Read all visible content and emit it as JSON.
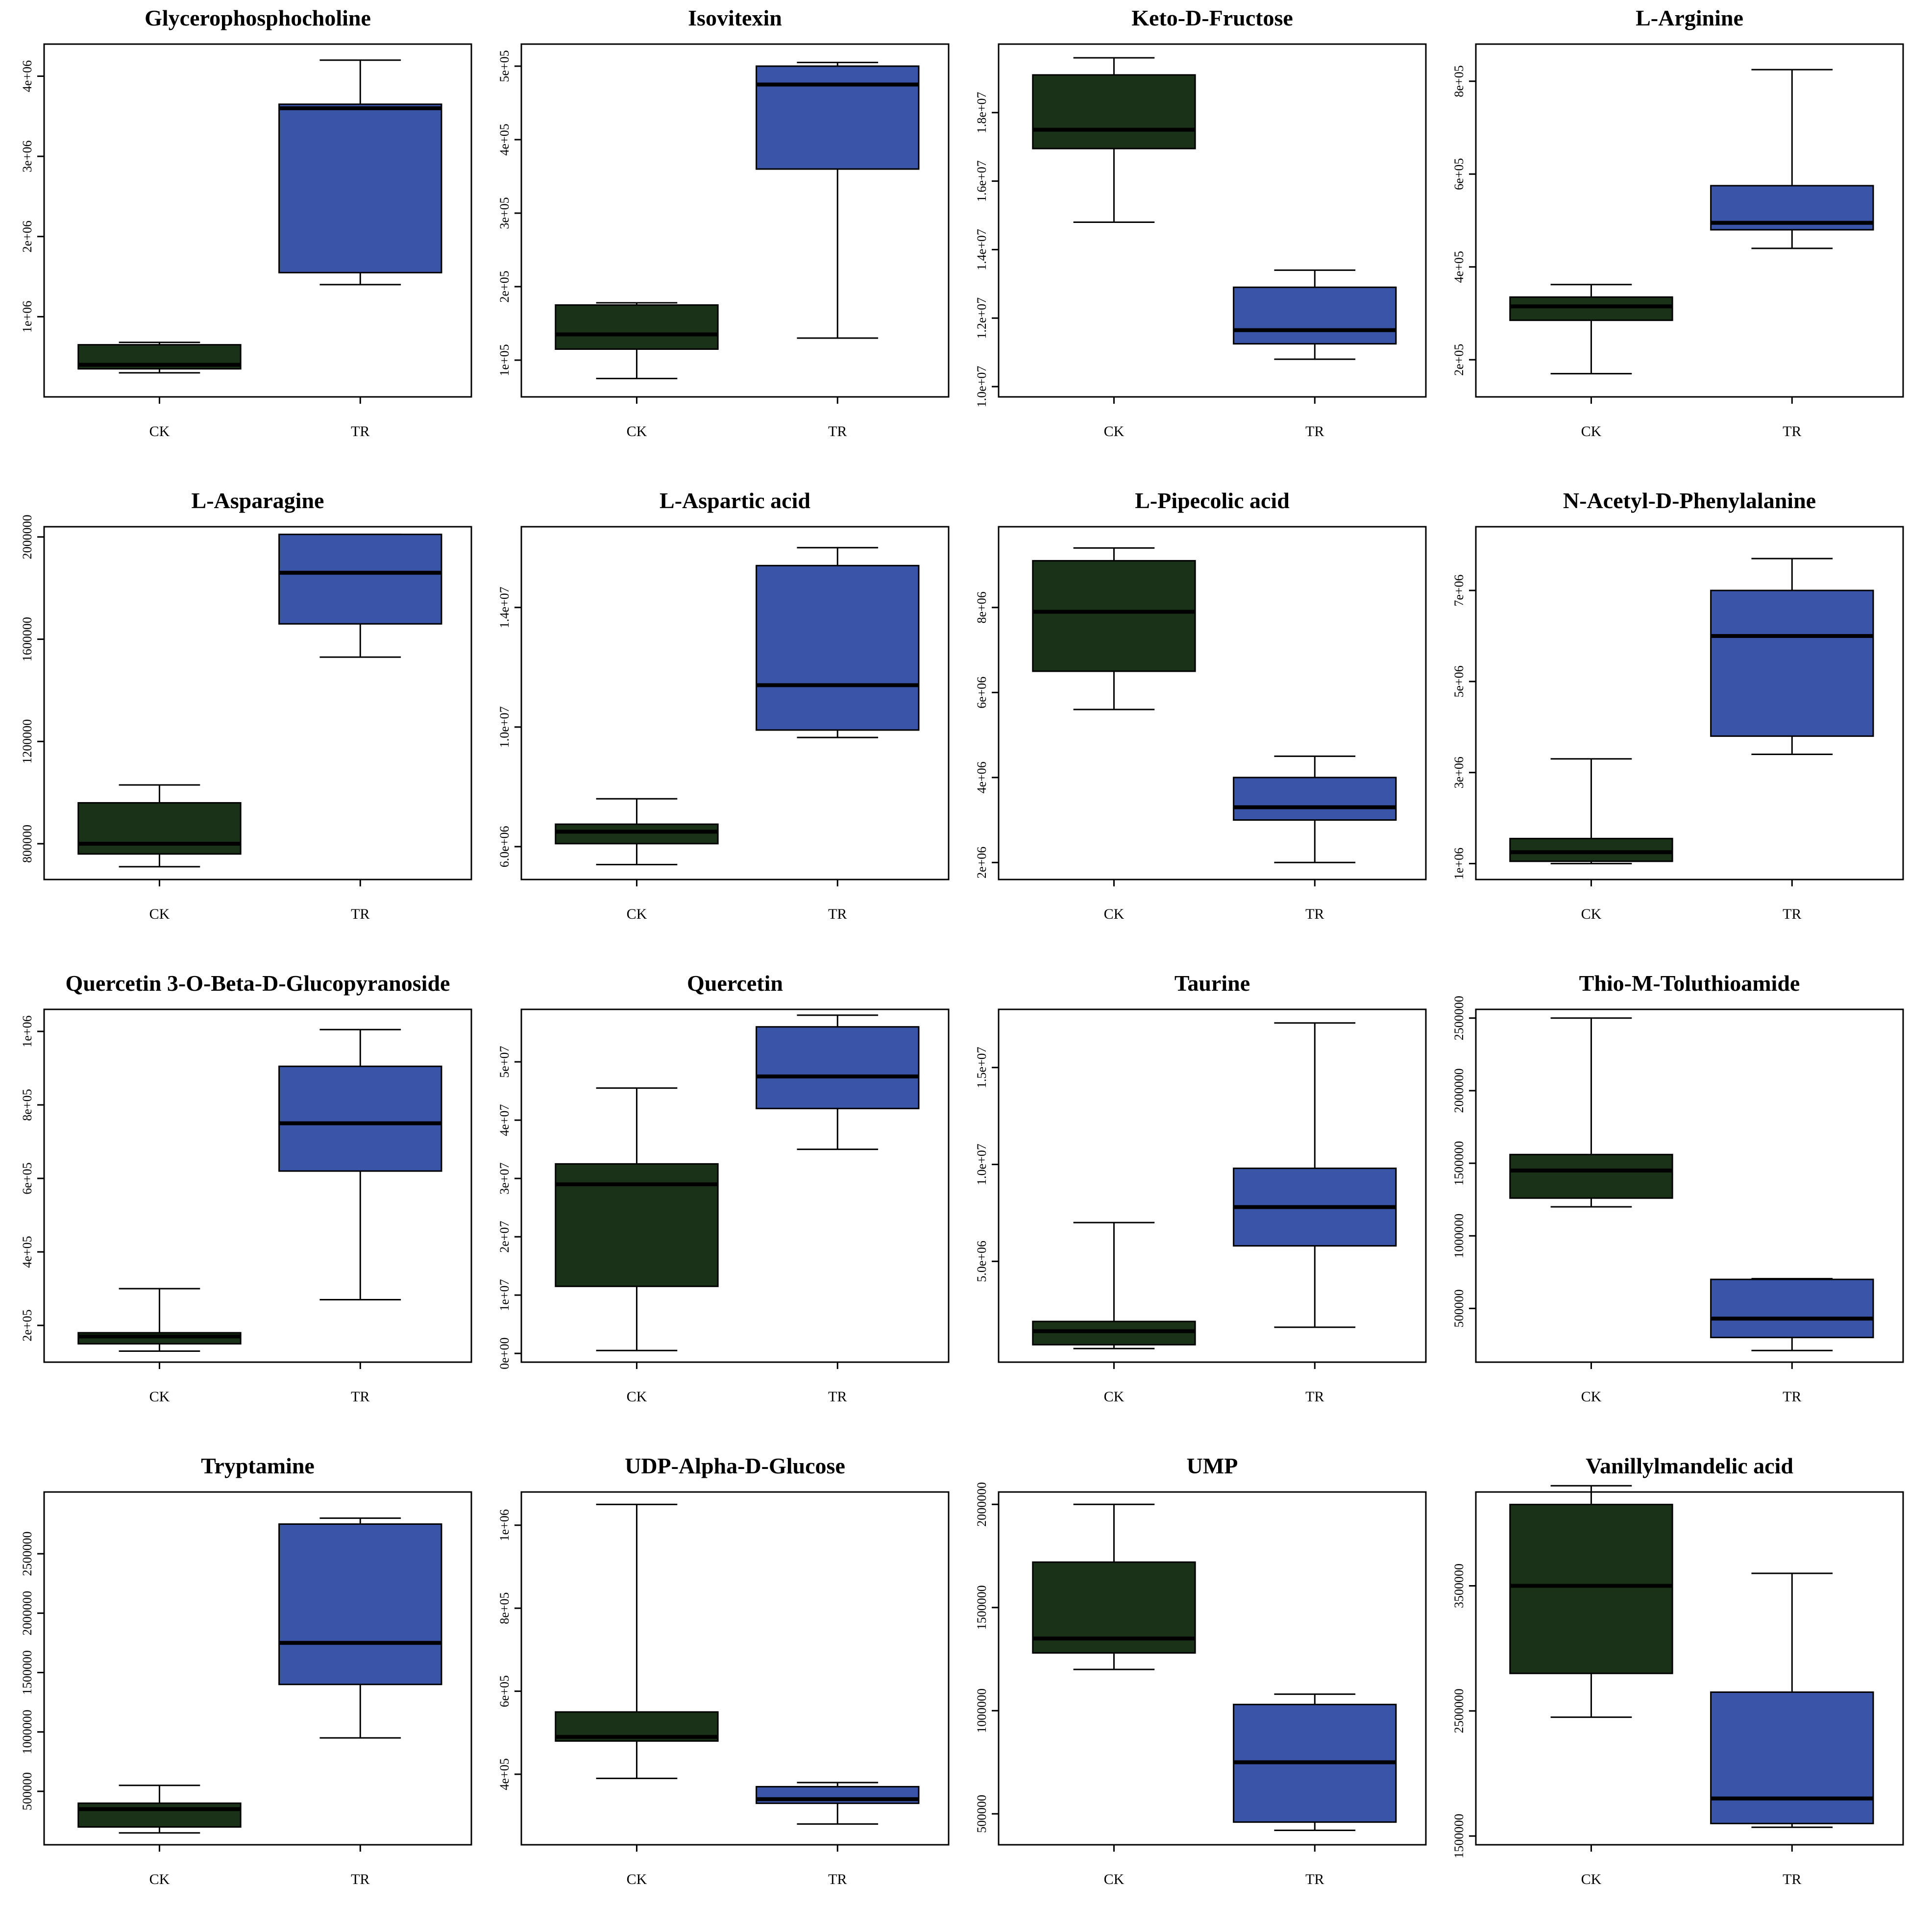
{
  "figure": {
    "box_style": {
      "ck_color": "#1a3318",
      "tr_color": "#3a55a8",
      "line_color": "#000000"
    }
  },
  "chart_data": [
    {
      "type": "boxplot",
      "title": "Glycerophosphocholine",
      "categories": [
        "CK",
        "TR"
      ],
      "ylim": [
        0,
        4400000
      ],
      "yticks": [
        1000000,
        2000000,
        3000000,
        4000000
      ],
      "yticklabels": [
        "1e+06",
        "2e+06",
        "3e+06",
        "4e+06"
      ],
      "series": [
        {
          "name": "CK",
          "whisker_low": 300000,
          "q1": 350000,
          "median": 400000,
          "q3": 650000,
          "whisker_high": 680000
        },
        {
          "name": "TR",
          "whisker_low": 1400000,
          "q1": 1550000,
          "median": 3600000,
          "q3": 3650000,
          "whisker_high": 4200000
        }
      ]
    },
    {
      "type": "boxplot",
      "title": "Isovitexin",
      "categories": [
        "CK",
        "TR"
      ],
      "ylim": [
        50000,
        530000
      ],
      "yticks": [
        100000,
        200000,
        300000,
        400000,
        500000
      ],
      "yticklabels": [
        "1e+05",
        "2e+05",
        "3e+05",
        "4e+05",
        "5e+05"
      ],
      "series": [
        {
          "name": "CK",
          "whisker_low": 75000,
          "q1": 115000,
          "median": 135000,
          "q3": 175000,
          "whisker_high": 178000
        },
        {
          "name": "TR",
          "whisker_low": 130000,
          "q1": 360000,
          "median": 475000,
          "q3": 500000,
          "whisker_high": 505000
        }
      ]
    },
    {
      "type": "boxplot",
      "title": "Keto-D-Fructose",
      "categories": [
        "CK",
        "TR"
      ],
      "ylim": [
        9700000,
        20000000
      ],
      "yticks": [
        10000000,
        12000000,
        14000000,
        16000000,
        18000000
      ],
      "yticklabels": [
        "1.0e+07",
        "1.2e+07",
        "1.4e+07",
        "1.6e+07",
        "1.8e+07"
      ],
      "series": [
        {
          "name": "CK",
          "whisker_low": 14800000,
          "q1": 16950000,
          "median": 17500000,
          "q3": 19100000,
          "whisker_high": 19600000
        },
        {
          "name": "TR",
          "whisker_low": 10800000,
          "q1": 11250000,
          "median": 11650000,
          "q3": 12900000,
          "whisker_high": 13400000
        }
      ]
    },
    {
      "type": "boxplot",
      "title": "L-Arginine",
      "categories": [
        "CK",
        "TR"
      ],
      "ylim": [
        120000,
        880000
      ],
      "yticks": [
        200000,
        400000,
        600000,
        800000
      ],
      "yticklabels": [
        "2e+05",
        "4e+05",
        "6e+05",
        "8e+05"
      ],
      "series": [
        {
          "name": "CK",
          "whisker_low": 170000,
          "q1": 285000,
          "median": 315000,
          "q3": 335000,
          "whisker_high": 362000
        },
        {
          "name": "TR",
          "whisker_low": 440000,
          "q1": 480000,
          "median": 495000,
          "q3": 575000,
          "whisker_high": 825000
        }
      ]
    },
    {
      "type": "boxplot",
      "title": "L-Asparagine",
      "categories": [
        "CK",
        "TR"
      ],
      "ylim": [
        660000,
        2040000
      ],
      "yticks": [
        800000,
        1200000,
        1600000,
        2000000
      ],
      "yticklabels": [
        "800000",
        "1200000",
        "1600000",
        "2000000"
      ],
      "series": [
        {
          "name": "CK",
          "whisker_low": 710000,
          "q1": 760000,
          "median": 800000,
          "q3": 960000,
          "whisker_high": 1030000
        },
        {
          "name": "TR",
          "whisker_low": 1530000,
          "q1": 1660000,
          "median": 1860000,
          "q3": 2010000,
          "whisker_high": 2010000
        }
      ]
    },
    {
      "type": "boxplot",
      "title": "L-Aspartic acid",
      "categories": [
        "CK",
        "TR"
      ],
      "ylim": [
        4900000,
        16700000
      ],
      "yticks": [
        6000000,
        10000000,
        14000000
      ],
      "yticklabels": [
        "6.0e+06",
        "1.0e+07",
        "1.4e+07"
      ],
      "series": [
        {
          "name": "CK",
          "whisker_low": 5400000,
          "q1": 6100000,
          "median": 6500000,
          "q3": 6750000,
          "whisker_high": 7600000
        },
        {
          "name": "TR",
          "whisker_low": 9650000,
          "q1": 9900000,
          "median": 11400000,
          "q3": 15400000,
          "whisker_high": 16000000
        }
      ]
    },
    {
      "type": "boxplot",
      "title": "L-Pipecolic acid",
      "categories": [
        "CK",
        "TR"
      ],
      "ylim": [
        1600000,
        9900000
      ],
      "yticks": [
        2000000,
        4000000,
        6000000,
        8000000
      ],
      "yticklabels": [
        "2e+06",
        "4e+06",
        "6e+06",
        "8e+06"
      ],
      "series": [
        {
          "name": "CK",
          "whisker_low": 5600000,
          "q1": 6500000,
          "median": 7900000,
          "q3": 9100000,
          "whisker_high": 9400000
        },
        {
          "name": "TR",
          "whisker_low": 2000000,
          "q1": 3000000,
          "median": 3300000,
          "q3": 4000000,
          "whisker_high": 4500000
        }
      ]
    },
    {
      "type": "boxplot",
      "title": "N-Acetyl-D-Phenylalanine",
      "categories": [
        "CK",
        "TR"
      ],
      "ylim": [
        650000,
        8400000
      ],
      "yticks": [
        1000000,
        3000000,
        5000000,
        7000000
      ],
      "yticklabels": [
        "1e+06",
        "3e+06",
        "5e+06",
        "7e+06"
      ],
      "series": [
        {
          "name": "CK",
          "whisker_low": 1000000,
          "q1": 1050000,
          "median": 1250000,
          "q3": 1550000,
          "whisker_high": 3300000
        },
        {
          "name": "TR",
          "whisker_low": 3400000,
          "q1": 3800000,
          "median": 6000000,
          "q3": 7000000,
          "whisker_high": 7700000
        }
      ]
    },
    {
      "type": "boxplot",
      "title": "Quercetin 3-O-Beta-D-Glucopyranoside",
      "categories": [
        "CK",
        "TR"
      ],
      "ylim": [
        100000,
        1060000
      ],
      "yticks": [
        200000,
        400000,
        600000,
        800000,
        1000000
      ],
      "yticklabels": [
        "2e+05",
        "4e+05",
        "6e+05",
        "8e+05",
        "1e+06"
      ],
      "series": [
        {
          "name": "CK",
          "whisker_low": 130000,
          "q1": 150000,
          "median": 170000,
          "q3": 180000,
          "whisker_high": 300000
        },
        {
          "name": "TR",
          "whisker_low": 270000,
          "q1": 620000,
          "median": 750000,
          "q3": 905000,
          "whisker_high": 1005000
        }
      ]
    },
    {
      "type": "boxplot",
      "title": "Quercetin",
      "categories": [
        "CK",
        "TR"
      ],
      "ylim": [
        -1500000,
        59000000
      ],
      "yticks": [
        0,
        10000000,
        20000000,
        30000000,
        40000000,
        50000000
      ],
      "yticklabels": [
        "0e+00",
        "1e+07",
        "2e+07",
        "3e+07",
        "4e+07",
        "5e+07"
      ],
      "series": [
        {
          "name": "CK",
          "whisker_low": 500000,
          "q1": 11500000,
          "median": 29000000,
          "q3": 32500000,
          "whisker_high": 45500000
        },
        {
          "name": "TR",
          "whisker_low": 35000000,
          "q1": 42000000,
          "median": 47500000,
          "q3": 56000000,
          "whisker_high": 58000000
        }
      ]
    },
    {
      "type": "boxplot",
      "title": "Taurine",
      "categories": [
        "CK",
        "TR"
      ],
      "ylim": [
        -200000,
        18000000
      ],
      "yticks": [
        5000000,
        10000000,
        15000000
      ],
      "yticklabels": [
        "5.0e+06",
        "1.0e+07",
        "1.5e+07"
      ],
      "series": [
        {
          "name": "CK",
          "whisker_low": 500000,
          "q1": 700000,
          "median": 1400000,
          "q3": 1900000,
          "whisker_high": 7000000
        },
        {
          "name": "TR",
          "whisker_low": 1600000,
          "q1": 5800000,
          "median": 7800000,
          "q3": 9800000,
          "whisker_high": 17300000
        }
      ]
    },
    {
      "type": "boxplot",
      "title": "Thio-M-Toluthioamide",
      "categories": [
        "CK",
        "TR"
      ],
      "ylim": [
        130000,
        2560000
      ],
      "yticks": [
        500000,
        1000000,
        1500000,
        2000000,
        2500000
      ],
      "yticklabels": [
        "500000",
        "1000000",
        "1500000",
        "2000000",
        "2500000"
      ],
      "series": [
        {
          "name": "CK",
          "whisker_low": 1200000,
          "q1": 1260000,
          "median": 1450000,
          "q3": 1560000,
          "whisker_high": 2500000
        },
        {
          "name": "TR",
          "whisker_low": 210000,
          "q1": 300000,
          "median": 430000,
          "q3": 700000,
          "whisker_high": 705000
        }
      ]
    },
    {
      "type": "boxplot",
      "title": "Tryptamine",
      "categories": [
        "CK",
        "TR"
      ],
      "ylim": [
        50000,
        3020000
      ],
      "yticks": [
        500000,
        1000000,
        1500000,
        2000000,
        2500000
      ],
      "yticklabels": [
        "500000",
        "1000000",
        "1500000",
        "2000000",
        "2500000"
      ],
      "series": [
        {
          "name": "CK",
          "whisker_low": 150000,
          "q1": 200000,
          "median": 350000,
          "q3": 400000,
          "whisker_high": 550000
        },
        {
          "name": "TR",
          "whisker_low": 950000,
          "q1": 1400000,
          "median": 1750000,
          "q3": 2750000,
          "whisker_high": 2800000
        }
      ]
    },
    {
      "type": "boxplot",
      "title": "UDP-Alpha-D-Glucose",
      "categories": [
        "CK",
        "TR"
      ],
      "ylim": [
        230000,
        1080000
      ],
      "yticks": [
        400000,
        600000,
        800000,
        1000000
      ],
      "yticklabels": [
        "4e+05",
        "6e+05",
        "8e+05",
        "1e+06"
      ],
      "series": [
        {
          "name": "CK",
          "whisker_low": 390000,
          "q1": 480000,
          "median": 490000,
          "q3": 550000,
          "whisker_high": 1050000
        },
        {
          "name": "TR",
          "whisker_low": 280000,
          "q1": 330000,
          "median": 340000,
          "q3": 370000,
          "whisker_high": 380000
        }
      ]
    },
    {
      "type": "boxplot",
      "title": "UMP",
      "categories": [
        "CK",
        "TR"
      ],
      "ylim": [
        350000,
        2060000
      ],
      "yticks": [
        500000,
        1000000,
        1500000,
        2000000
      ],
      "yticklabels": [
        "500000",
        "1000000",
        "1500000",
        "2000000"
      ],
      "series": [
        {
          "name": "CK",
          "whisker_low": 1200000,
          "q1": 1280000,
          "median": 1350000,
          "q3": 1720000,
          "whisker_high": 2000000
        },
        {
          "name": "TR",
          "whisker_low": 420000,
          "q1": 460000,
          "median": 750000,
          "q3": 1030000,
          "whisker_high": 1080000
        }
      ]
    },
    {
      "type": "boxplot",
      "title": "Vanillylmandelic acid",
      "categories": [
        "CK",
        "TR"
      ],
      "ylim": [
        1430000,
        4250000
      ],
      "yticks": [
        1500000,
        2500000,
        3500000
      ],
      "yticklabels": [
        "1500000",
        "2500000",
        "3500000"
      ],
      "series": [
        {
          "name": "CK",
          "whisker_low": 2450000,
          "q1": 2800000,
          "median": 3500000,
          "q3": 4150000,
          "whisker_high": 4300000
        },
        {
          "name": "TR",
          "whisker_low": 1570000,
          "q1": 1600000,
          "median": 1800000,
          "q3": 2650000,
          "whisker_high": 3600000
        }
      ]
    }
  ]
}
